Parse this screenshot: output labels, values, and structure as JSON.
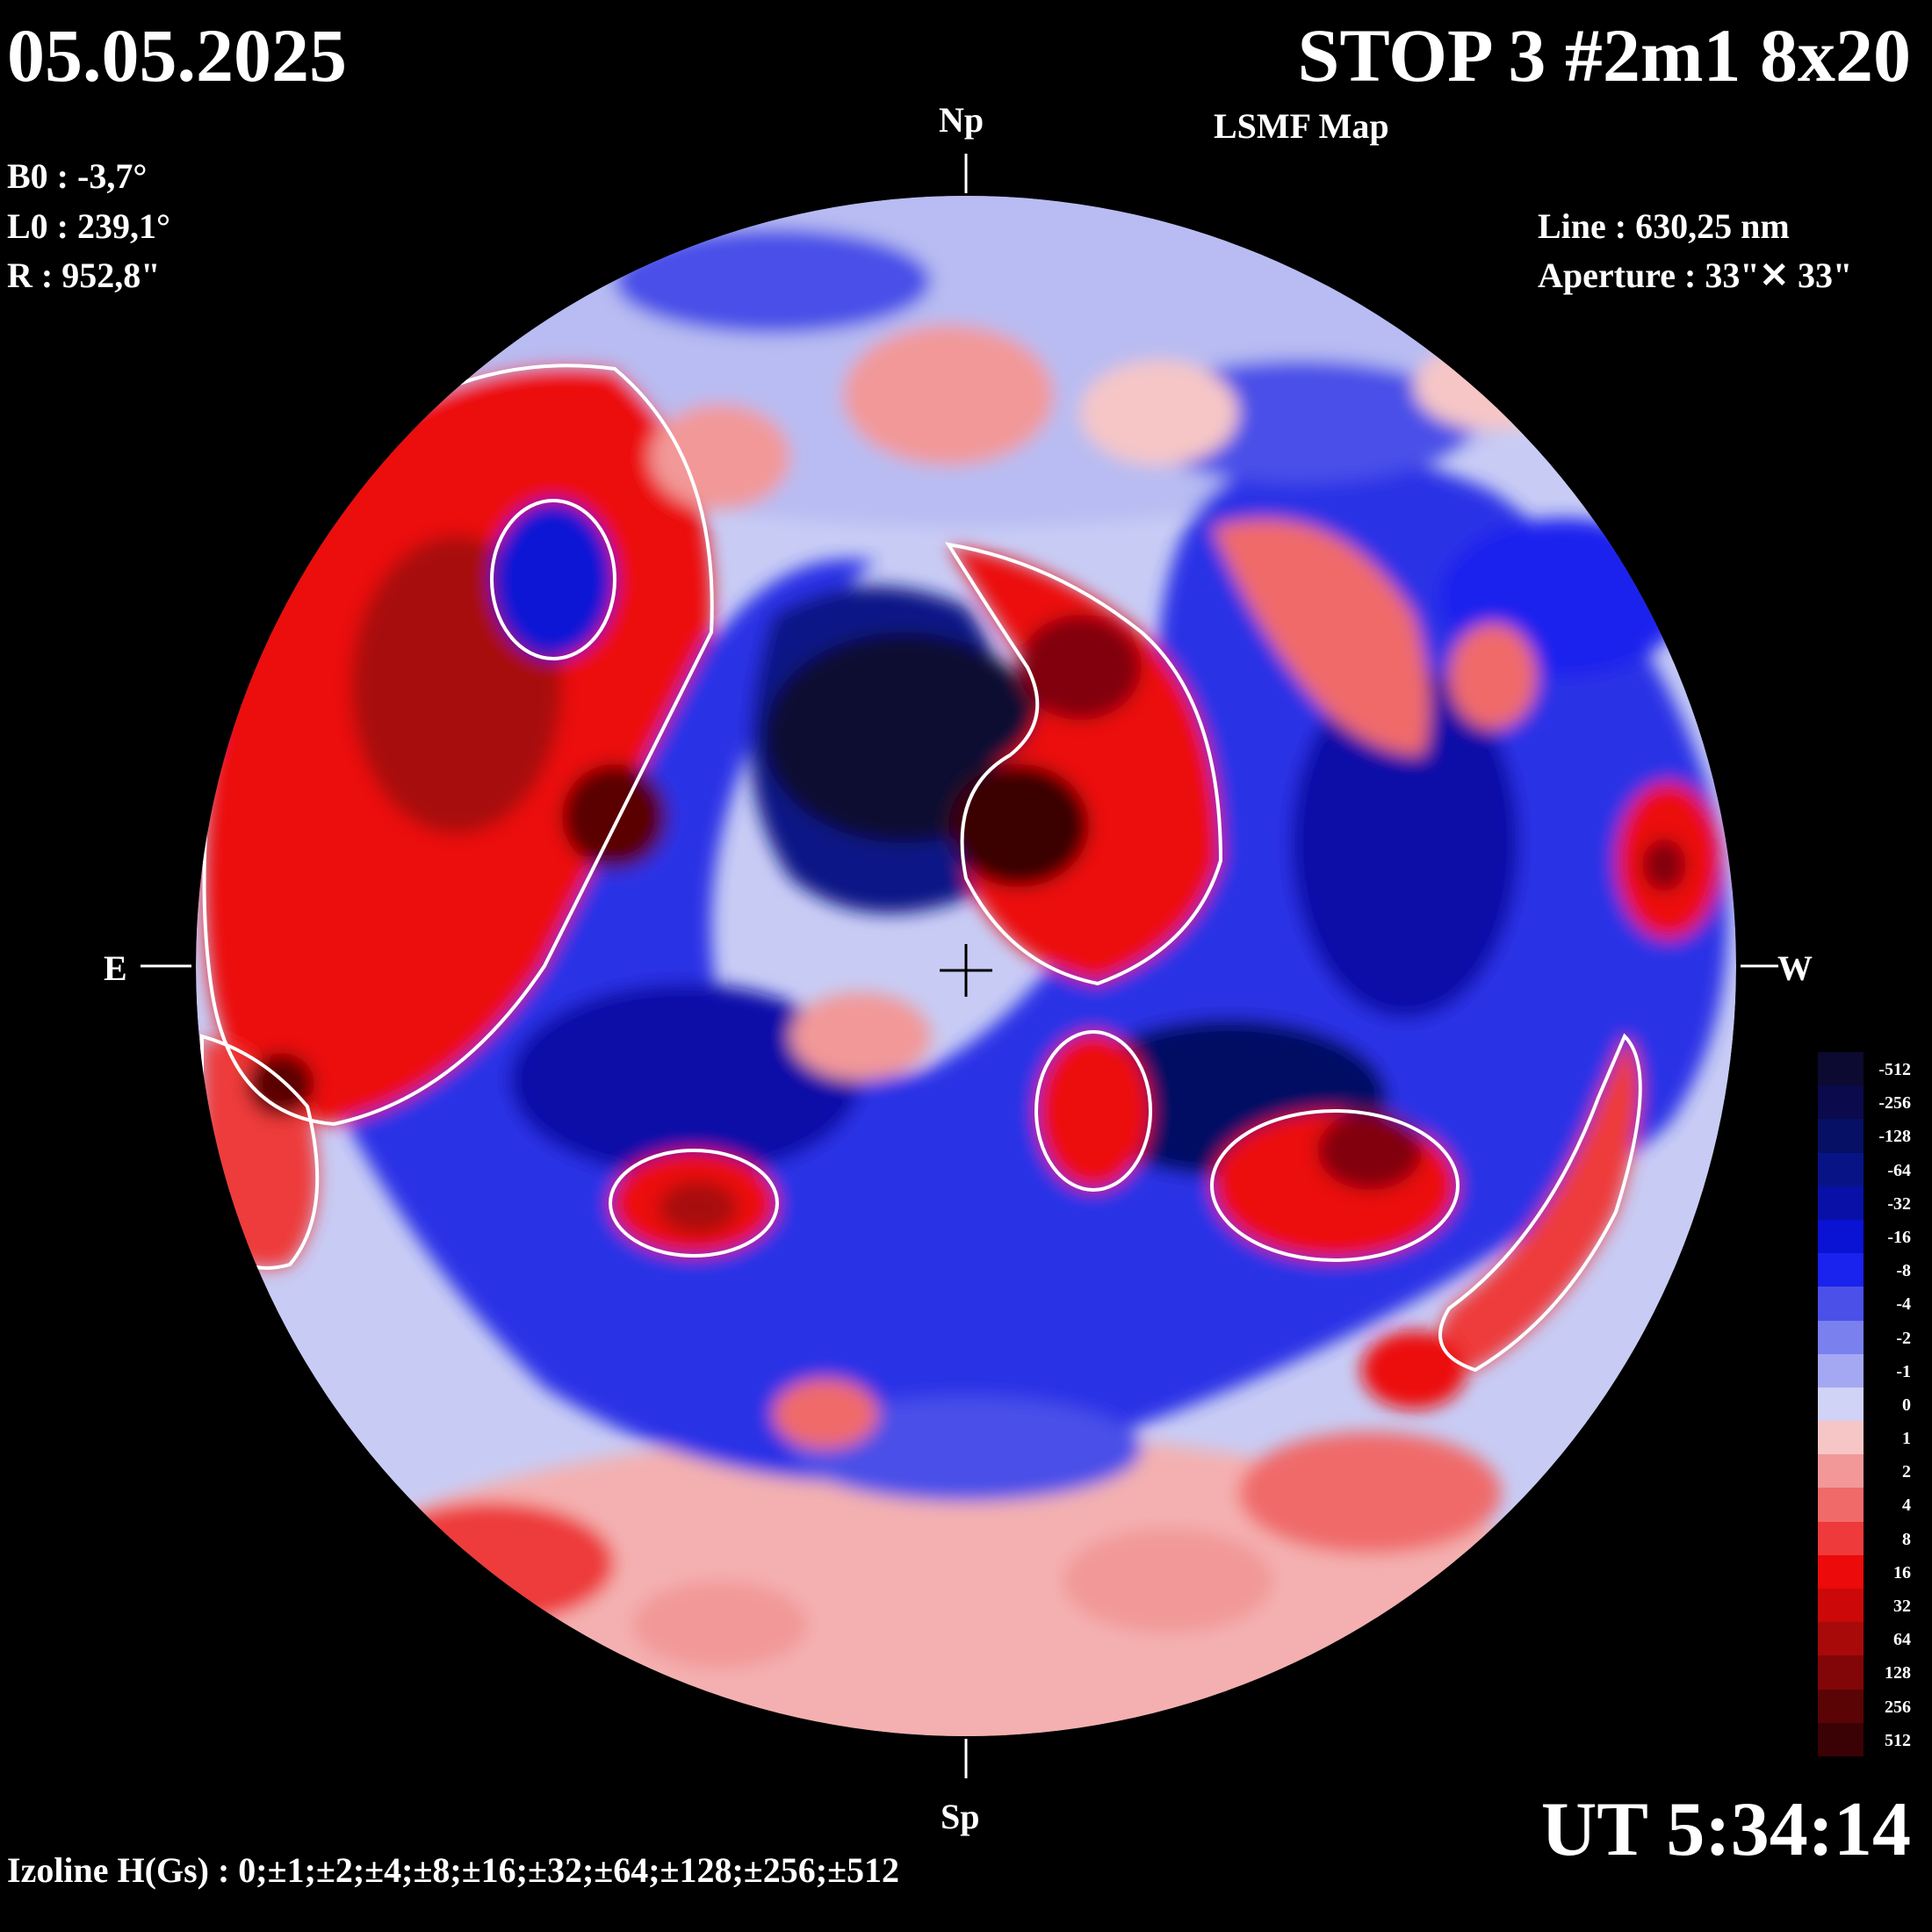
{
  "header": {
    "date": "05.05.2025",
    "title": "STOP 3 #2m1 8x20",
    "subtitle": "LSMF  Map"
  },
  "params": {
    "b0": "B0 : -3,7°",
    "l0": "L0 : 239,1°",
    "r": "R  : 952,8\"",
    "line": "Line :  630,25 nm",
    "aperture": "Aperture : 33\"✕ 33\""
  },
  "directions": {
    "north": "Np",
    "south": "Sp",
    "east": "E",
    "west": "W"
  },
  "footer": {
    "ut": "UT 5:34:14",
    "izoline": "Izoline H(Gs) : 0;±1;±2;±4;±8;±16;±32;±64;±128;±256;±512"
  },
  "colors": {
    "background": "#000000",
    "positive_strong": "#5a0008",
    "positive": "#e81010",
    "positive_weak": "#f7b8b8",
    "negative_strong": "#00104a",
    "negative": "#0a14d8",
    "negative_weak": "#c8ccf5",
    "zero_line": "#ffffff"
  },
  "colorbar": [
    {
      "label": "-512",
      "color": "#0c0a30"
    },
    {
      "label": "-256",
      "color": "#0a0a4c"
    },
    {
      "label": "-128",
      "color": "#061064"
    },
    {
      "label": "-64",
      "color": "#081486"
    },
    {
      "label": "-32",
      "color": "#0810a8"
    },
    {
      "label": "-16",
      "color": "#0a12d4"
    },
    {
      "label": "-8",
      "color": "#1a22ee"
    },
    {
      "label": "-4",
      "color": "#4a50e8"
    },
    {
      "label": "-2",
      "color": "#7a80ee"
    },
    {
      "label": "-1",
      "color": "#a4a8f2"
    },
    {
      "label": "0",
      "color": "#d0d2f6"
    },
    {
      "label": "1",
      "color": "#f6c6c6"
    },
    {
      "label": "2",
      "color": "#f29898"
    },
    {
      "label": "4",
      "color": "#f06a6a"
    },
    {
      "label": "8",
      "color": "#ee3a3a"
    },
    {
      "label": "16",
      "color": "#ec0a0a"
    },
    {
      "label": "32",
      "color": "#cc0808"
    },
    {
      "label": "64",
      "color": "#a80a0a"
    },
    {
      "label": "128",
      "color": "#820608"
    },
    {
      "label": "256",
      "color": "#5a0406"
    },
    {
      "label": "512",
      "color": "#3a0204"
    }
  ]
}
